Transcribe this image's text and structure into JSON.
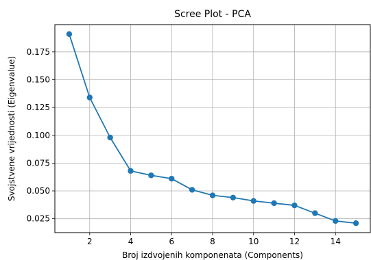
{
  "chart_data": {
    "type": "line",
    "title": "Scree Plot - PCA",
    "xlabel": "Broj izdvojenih komponenata (Components)",
    "ylabel": "Svojstvene vrijednosti (Eigenvalue)",
    "x": [
      1,
      2,
      3,
      4,
      5,
      6,
      7,
      8,
      9,
      10,
      11,
      12,
      13,
      14,
      15
    ],
    "series": [
      {
        "values": [
          0.191,
          0.134,
          0.098,
          0.068,
          0.064,
          0.061,
          0.051,
          0.046,
          0.044,
          0.041,
          0.039,
          0.037,
          0.03,
          0.023,
          0.021
        ],
        "color": "#1f77b4",
        "marker": "circle"
      }
    ],
    "xlim": [
      0.3,
      15.7
    ],
    "ylim": [
      0.0125,
      0.1995
    ],
    "xticks": [
      2,
      4,
      6,
      8,
      10,
      12,
      14
    ],
    "xtick_labels": [
      "2",
      "4",
      "6",
      "8",
      "10",
      "12",
      "14"
    ],
    "yticks": [
      0.025,
      0.05,
      0.075,
      0.1,
      0.125,
      0.15,
      0.175
    ],
    "ytick_labels": [
      "0.025",
      "0.050",
      "0.075",
      "0.100",
      "0.125",
      "0.150",
      "0.175"
    ],
    "grid": true,
    "grid_color": "#b0b0b0",
    "axis_color": "#000000"
  }
}
